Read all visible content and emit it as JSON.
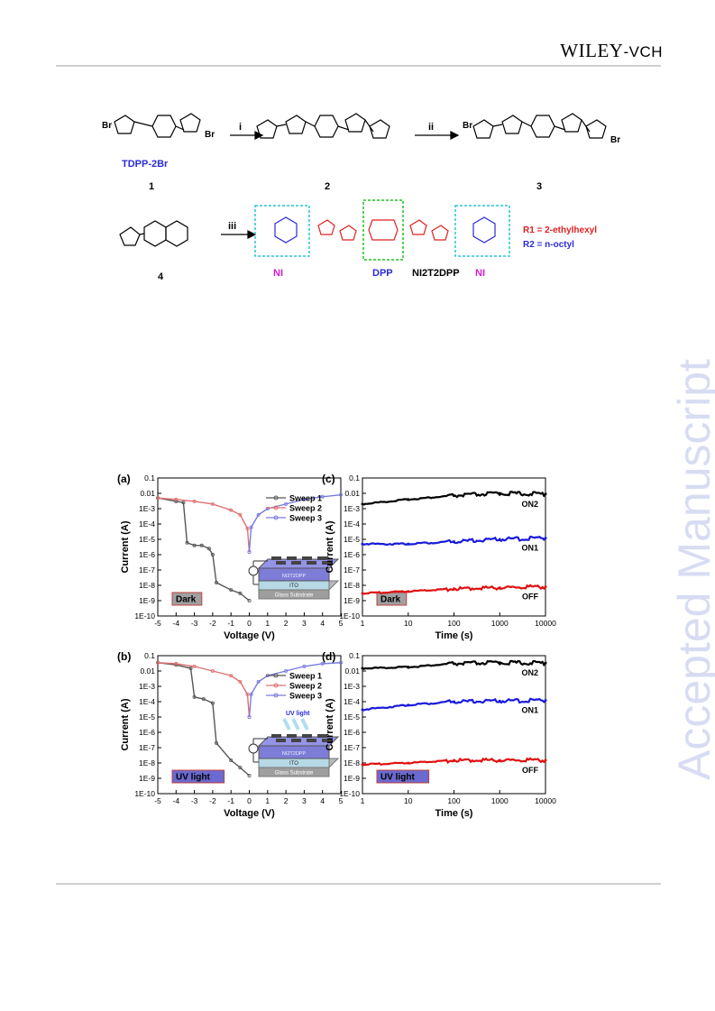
{
  "header": {
    "publisher_main": "WILEY",
    "publisher_suffix": "-VCH"
  },
  "watermark": "Accepted Manuscript",
  "scheme": {
    "compound1_label": "TDPP-2Br",
    "compound_numbers": [
      "1",
      "2",
      "3",
      "4"
    ],
    "steps": [
      "i",
      "ii",
      "iii"
    ],
    "unit_labels": {
      "ni_left": "NI",
      "dpp": "DPP",
      "ni_right": "NI"
    },
    "product_name": "NI2T2DPP",
    "substituents": [
      "R1 = 2-ethylhexyl",
      "R2 = n-octyl"
    ]
  },
  "figure": {
    "colors": {
      "sweep1": "#555555",
      "sweep2": "#e07070",
      "sweep3": "#7a7ae0",
      "on2": "#000000",
      "on1": "#1a1adc",
      "off": "#e01010"
    },
    "panels": [
      {
        "id": "a",
        "label": "(a)",
        "condition": "Dark",
        "xlabel": "Voltage (V)",
        "ylabel": "Current (A)",
        "xticks": [
          "-5",
          "-4",
          "-3",
          "-2",
          "-1",
          "0",
          "1",
          "2",
          "3",
          "4",
          "5"
        ],
        "yticks": [
          "0.1",
          "0.01",
          "1E-3",
          "1E-4",
          "1E-5",
          "1E-6",
          "1E-7",
          "1E-8",
          "1E-9",
          "1E-10"
        ],
        "legend": [
          "Sweep 1",
          "Sweep 2",
          "Sweep 3"
        ],
        "device_layers": [
          "NI2T2DPP",
          "ITO",
          "Glass Substrate"
        ]
      },
      {
        "id": "b",
        "label": "(b)",
        "condition": "UV light",
        "xlabel": "Voltage (V)",
        "ylabel": "Current (A)",
        "xticks": [
          "-5",
          "-4",
          "-3",
          "-2",
          "-1",
          "0",
          "1",
          "2",
          "3",
          "4",
          "5"
        ],
        "yticks": [
          "0.1",
          "0.01",
          "1E-3",
          "1E-4",
          "1E-5",
          "1E-6",
          "1E-7",
          "1E-8",
          "1E-9",
          "1E-10"
        ],
        "legend": [
          "Sweep 1",
          "Sweep 2",
          "Sweep 3"
        ],
        "uv_label": "UV light",
        "device_layers": [
          "NI2T2DPP",
          "ITO",
          "Glass Substrate"
        ]
      },
      {
        "id": "c",
        "label": "(c)",
        "condition": "Dark",
        "xlabel": "Time (s)",
        "ylabel": "Current (A)",
        "xticks": [
          "1",
          "10",
          "100",
          "1000",
          "10000"
        ],
        "yticks": [
          "0.1",
          "0.01",
          "1E-3",
          "1E-4",
          "1E-5",
          "1E-6",
          "1E-7",
          "1E-8",
          "1E-9",
          "1E-10"
        ],
        "state_labels": [
          "ON2",
          "ON1",
          "OFF"
        ]
      },
      {
        "id": "d",
        "label": "(d)",
        "condition": "UV light",
        "xlabel": "Time (s)",
        "ylabel": "Current (A)",
        "xticks": [
          "1",
          "10",
          "100",
          "1000",
          "10000"
        ],
        "yticks": [
          "0.1",
          "0.01",
          "1E-3",
          "1E-4",
          "1E-5",
          "1E-6",
          "1E-7",
          "1E-8",
          "1E-9",
          "1E-10"
        ],
        "state_labels": [
          "ON2",
          "ON1",
          "OFF"
        ]
      }
    ]
  },
  "chart_data": [
    {
      "type": "line",
      "panel": "a",
      "xlabel": "Voltage (V)",
      "ylabel": "Current (A)",
      "xlim": [
        -5,
        5
      ],
      "ylim": [
        1e-10,
        0.1
      ],
      "yscale": "log",
      "series": [
        {
          "name": "Sweep 1",
          "x": [
            -5,
            -4,
            -3.6,
            -3.4,
            -3.0,
            -2.6,
            -2.2,
            -2.0,
            -1.8,
            -1.0,
            -0.5,
            0
          ],
          "y": [
            0.005,
            0.003,
            0.0025,
            6e-06,
            4e-06,
            4e-06,
            2.5e-06,
            1e-06,
            1.5e-08,
            5e-09,
            3e-09,
            1e-09
          ]
        },
        {
          "name": "Sweep 2",
          "x": [
            -5,
            -4,
            -3,
            -2,
            -1,
            -0.5,
            -0.1,
            0
          ],
          "y": [
            0.005,
            0.004,
            0.003,
            0.002,
            0.0008,
            0.0004,
            5e-05,
            1.5e-06
          ]
        },
        {
          "name": "Sweep 3",
          "x": [
            0,
            0.1,
            0.5,
            1,
            2,
            3,
            4,
            5
          ],
          "y": [
            1.5e-06,
            6e-05,
            0.0004,
            0.001,
            0.002,
            0.004,
            0.006,
            0.008
          ]
        }
      ]
    },
    {
      "type": "line",
      "panel": "b",
      "xlabel": "Voltage (V)",
      "ylabel": "Current (A)",
      "xlim": [
        -5,
        5
      ],
      "ylim": [
        1e-10,
        0.1
      ],
      "yscale": "log",
      "series": [
        {
          "name": "Sweep 1",
          "x": [
            -5,
            -4,
            -3.2,
            -3.0,
            -2.5,
            -2.0,
            -1.8,
            -1.0,
            -0.5,
            0
          ],
          "y": [
            0.035,
            0.025,
            0.015,
            0.0002,
            0.00015,
            8e-05,
            2e-07,
            1.5e-08,
            5e-09,
            1.5e-09
          ]
        },
        {
          "name": "Sweep 2",
          "x": [
            -5,
            -4,
            -3,
            -2,
            -1,
            -0.5,
            -0.1,
            0
          ],
          "y": [
            0.035,
            0.03,
            0.02,
            0.01,
            0.005,
            0.002,
            0.0003,
            1e-05
          ]
        },
        {
          "name": "Sweep 3",
          "x": [
            0,
            0.1,
            0.5,
            1,
            2,
            3,
            4,
            5
          ],
          "y": [
            1e-05,
            0.0003,
            0.002,
            0.005,
            0.01,
            0.02,
            0.03,
            0.035
          ]
        }
      ]
    },
    {
      "type": "scatter",
      "panel": "c",
      "xlabel": "Time (s)",
      "ylabel": "Current (A)",
      "xlim": [
        1,
        10000
      ],
      "xscale": "log",
      "ylim": [
        1e-10,
        0.1
      ],
      "yscale": "log",
      "series": [
        {
          "name": "ON2",
          "x": [
            1,
            10,
            100,
            1000,
            10000
          ],
          "y": [
            0.002,
            0.004,
            0.007,
            0.01,
            0.009
          ]
        },
        {
          "name": "ON1",
          "x": [
            1,
            10,
            100,
            1000,
            10000
          ],
          "y": [
            5e-06,
            5e-06,
            7e-06,
            1e-05,
            1.2e-05
          ]
        },
        {
          "name": "OFF",
          "x": [
            1,
            10,
            100,
            1000,
            10000
          ],
          "y": [
            3e-09,
            4e-09,
            6e-09,
            7e-09,
            8e-09
          ]
        }
      ]
    },
    {
      "type": "scatter",
      "panel": "d",
      "xlabel": "Time (s)",
      "ylabel": "Current (A)",
      "xlim": [
        1,
        10000
      ],
      "xscale": "log",
      "ylim": [
        1e-10,
        0.1
      ],
      "yscale": "log",
      "series": [
        {
          "name": "ON2",
          "x": [
            1,
            10,
            100,
            1000,
            10000
          ],
          "y": [
            0.015,
            0.018,
            0.03,
            0.035,
            0.033
          ]
        },
        {
          "name": "ON1",
          "x": [
            1,
            10,
            100,
            1000,
            10000
          ],
          "y": [
            3e-05,
            6e-05,
            0.0001,
            0.00011,
            0.00012
          ]
        },
        {
          "name": "OFF",
          "x": [
            1,
            10,
            100,
            1000,
            10000
          ],
          "y": [
            8e-09,
            1e-08,
            1.5e-08,
            1.5e-08,
            1.5e-08
          ]
        }
      ]
    }
  ]
}
